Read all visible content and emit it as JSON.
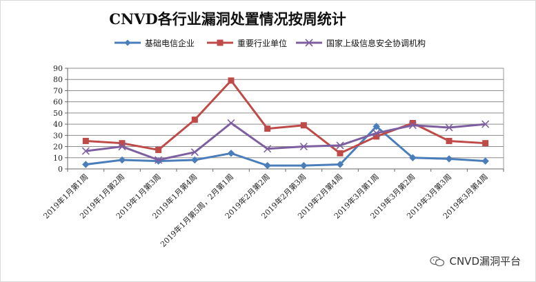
{
  "chart_data": {
    "type": "line",
    "title": "CNVD各行业漏洞处置情况按周统计",
    "xlabel": "",
    "ylabel": "",
    "ylim": [
      0,
      90
    ],
    "yticks": [
      0,
      10,
      20,
      30,
      40,
      50,
      60,
      70,
      80,
      90
    ],
    "grid": true,
    "legend_position": "top",
    "categories": [
      "2019年1月第1周",
      "2019年1月第2周",
      "2019年1月第3周",
      "2019年1月第4周",
      "2019年1月第5周，2月第1周",
      "2019年2月第2周",
      "2019年2月第3周",
      "2019年2月第4周",
      "2019年3月第1周",
      "2019年3月第2周",
      "2019年3月第3周",
      "2019年3月第4周"
    ],
    "series": [
      {
        "name": "基础电信企业",
        "color": "#4a7ebb",
        "marker": "diamond",
        "values": [
          4,
          8,
          7,
          8,
          14,
          3,
          3,
          4,
          38,
          10,
          9,
          7
        ]
      },
      {
        "name": "重要行业单位",
        "color": "#be4b48",
        "marker": "square",
        "values": [
          25,
          23,
          17,
          44,
          79,
          36,
          39,
          14,
          29,
          41,
          25,
          23
        ]
      },
      {
        "name": "国家上级信息安全协调机构",
        "color": "#7d5fa0",
        "marker": "x",
        "values": [
          16,
          20,
          8,
          15,
          41,
          18,
          20,
          21,
          32,
          39,
          37,
          40
        ]
      }
    ]
  },
  "watermark": {
    "text": "CNVD漏洞平台",
    "icon": "wechat-icon"
  }
}
